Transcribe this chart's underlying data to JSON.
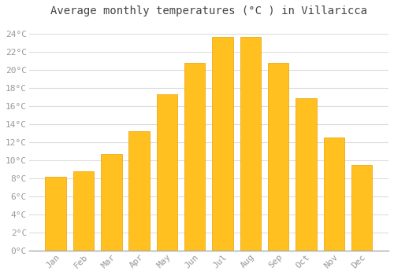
{
  "title": "Average monthly temperatures (°C ) in Villaricca",
  "months": [
    "Jan",
    "Feb",
    "Mar",
    "Apr",
    "May",
    "Jun",
    "Jul",
    "Aug",
    "Sep",
    "Oct",
    "Nov",
    "Dec"
  ],
  "values": [
    8.2,
    8.8,
    10.7,
    13.2,
    17.3,
    20.8,
    23.7,
    23.7,
    20.8,
    16.9,
    12.5,
    9.5
  ],
  "bar_color": "#FFC020",
  "bar_edge_color": "#E8A000",
  "background_color": "#FFFFFF",
  "grid_color": "#DDDDDD",
  "ylim": [
    0,
    25.5
  ],
  "yticks": [
    0,
    2,
    4,
    6,
    8,
    10,
    12,
    14,
    16,
    18,
    20,
    22,
    24
  ],
  "ytick_labels": [
    "0°C",
    "2°C",
    "4°C",
    "6°C",
    "8°C",
    "10°C",
    "12°C",
    "14°C",
    "16°C",
    "18°C",
    "20°C",
    "22°C",
    "24°C"
  ],
  "title_fontsize": 10,
  "tick_fontsize": 8,
  "tick_color": "#999999",
  "bar_width": 0.75
}
